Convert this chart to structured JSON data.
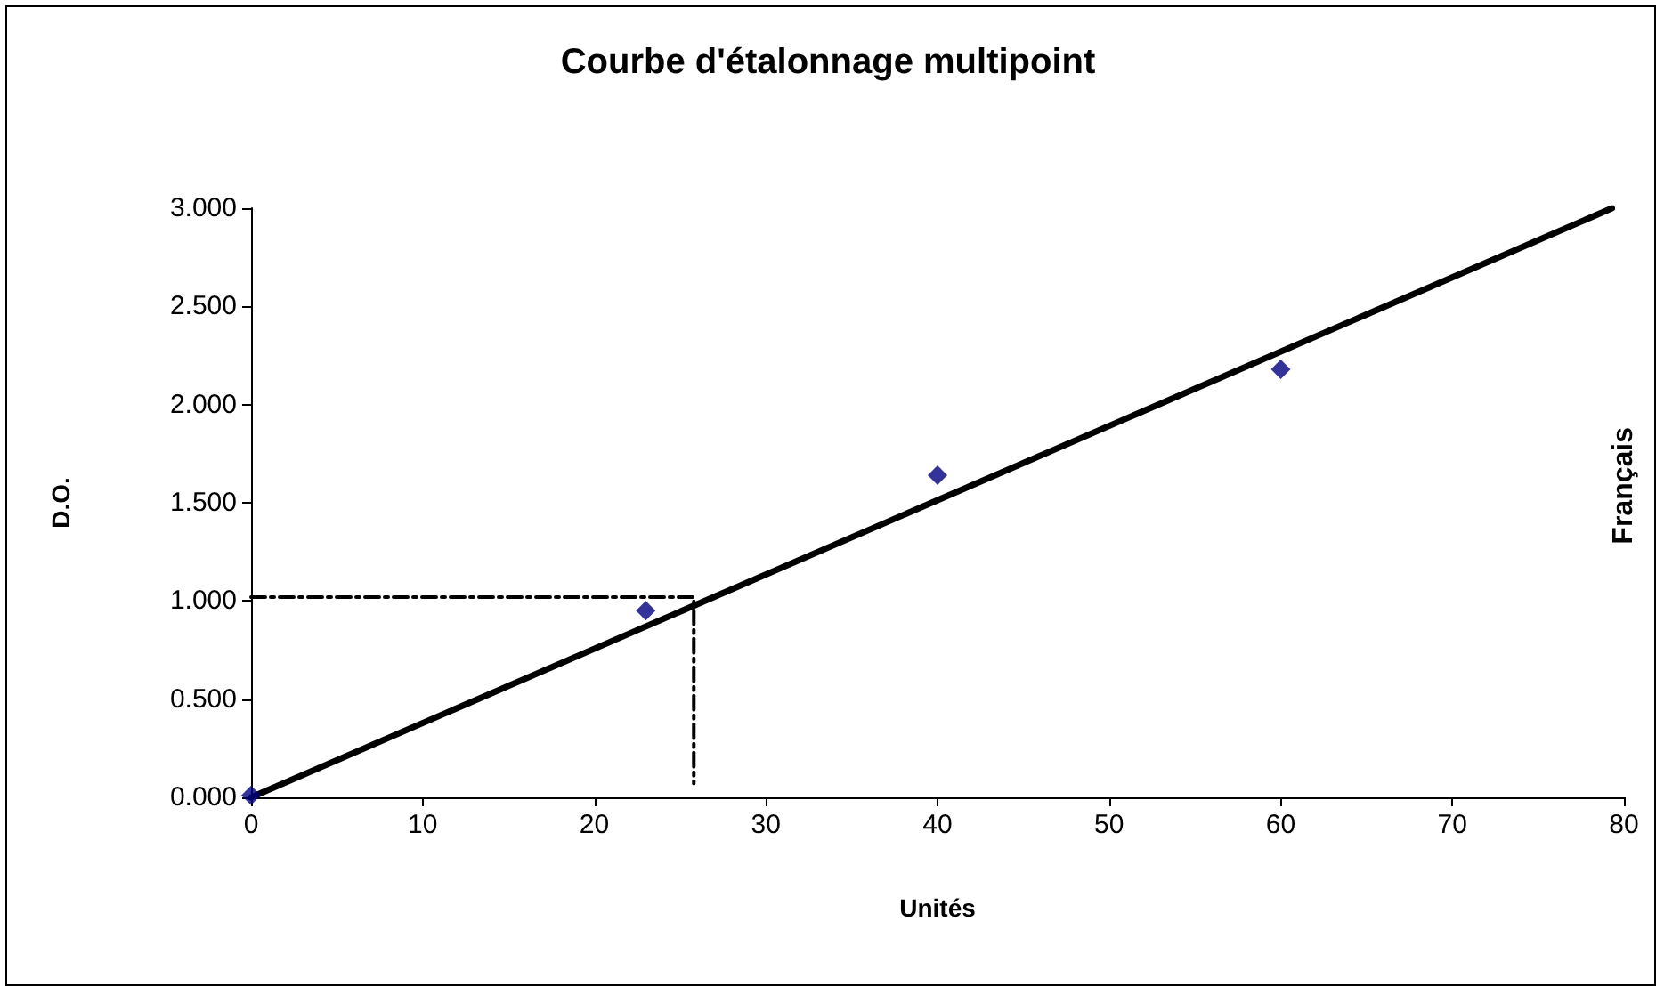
{
  "chart_data": {
    "type": "scatter",
    "title": "Courbe d'étalonnage multipoint",
    "xlabel": "Unités",
    "ylabel": "D.O.",
    "annotations": [
      "Français"
    ],
    "xlim": [
      0,
      80
    ],
    "xticks": [
      0,
      10,
      20,
      30,
      40,
      50,
      60,
      70,
      80
    ],
    "ylim": [
      0,
      3
    ],
    "yticks": [
      {
        "value": 0,
        "label": "0.000"
      },
      {
        "value": 0.5,
        "label": "0.500"
      },
      {
        "value": 1,
        "label": "1.000"
      },
      {
        "value": 1.5,
        "label": "1.500"
      },
      {
        "value": 2,
        "label": "2.000"
      },
      {
        "value": 2.5,
        "label": "2.500"
      },
      {
        "value": 3,
        "label": "3.000"
      }
    ],
    "grid": false,
    "series": [
      {
        "color": "#000080",
        "marker": "diamond",
        "x": [
          0,
          23,
          40,
          60
        ],
        "values": [
          0.01,
          0.95,
          1.64,
          2.18
        ]
      },
      {
        "type": "line",
        "color": "#000000",
        "marker": "none",
        "line_style": "solid",
        "x": [
          0,
          79.3
        ],
        "values": [
          0,
          3
        ]
      },
      {
        "type": "line",
        "color": "#000000",
        "marker": "none",
        "line_style": "dashed",
        "x": [
          0,
          25.8,
          25.8
        ],
        "values": [
          1.02,
          1.02,
          0.07
        ]
      }
    ]
  }
}
